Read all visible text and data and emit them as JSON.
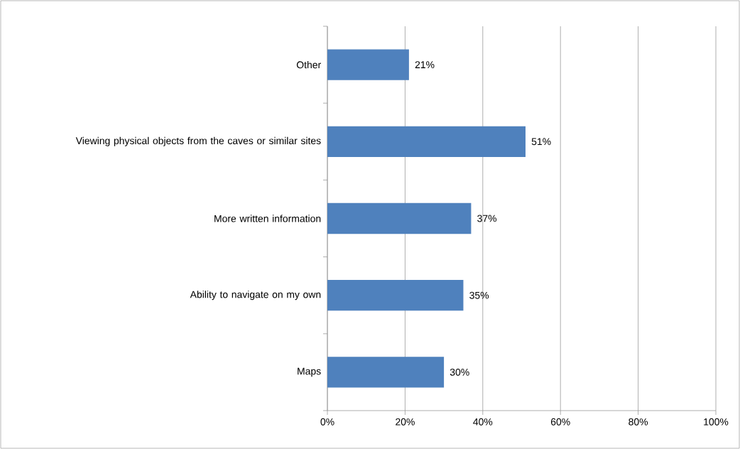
{
  "chart_data": {
    "type": "bar",
    "orientation": "horizontal",
    "categories": [
      "Other",
      "Viewing physical objects from the caves or similar sites",
      "More written information",
      "Ability to navigate on my own",
      "Maps"
    ],
    "values": [
      21,
      51,
      37,
      35,
      30
    ],
    "value_labels": [
      "21%",
      "51%",
      "37%",
      "35%",
      "30%"
    ],
    "color": "#4f81bd",
    "xlim": [
      0,
      100
    ],
    "xticks": [
      {
        "value": 0,
        "label": "0%"
      },
      {
        "value": 20,
        "label": "20%"
      },
      {
        "value": 40,
        "label": "40%"
      },
      {
        "value": 60,
        "label": "60%"
      },
      {
        "value": 80,
        "label": "80%"
      },
      {
        "value": 100,
        "label": "100%"
      }
    ],
    "grid": "x"
  }
}
